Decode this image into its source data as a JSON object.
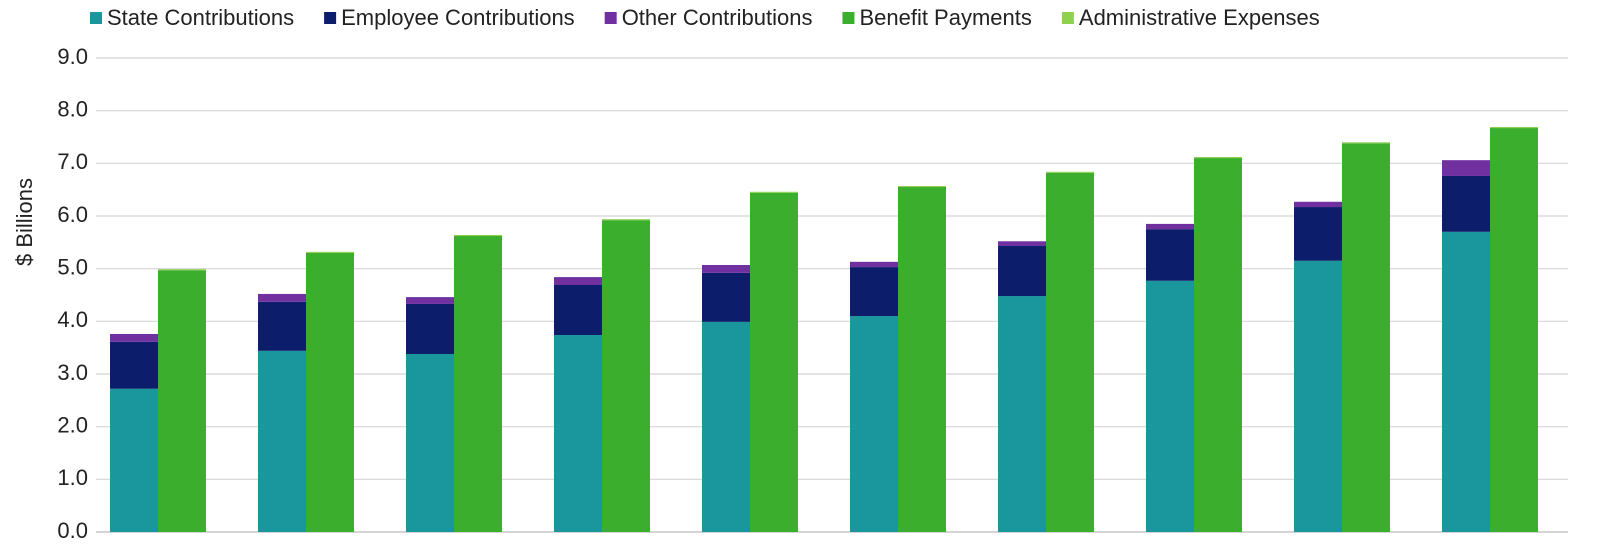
{
  "chart_data": {
    "type": "bar",
    "y_label": "$ Billions",
    "categories": [
      null,
      null,
      null,
      null,
      null,
      null,
      null,
      null,
      null,
      null
    ],
    "series": [
      {
        "name": "State Contributions",
        "color": "#1a979d",
        "stack": 1,
        "values": [
          2.72,
          3.44,
          3.38,
          3.74,
          3.99,
          4.1,
          4.48,
          4.77,
          5.15,
          5.7
        ]
      },
      {
        "name": "Employee Contributions",
        "color": "#0c1d6b",
        "stack": 1,
        "values": [
          0.89,
          0.93,
          0.95,
          0.95,
          0.93,
          0.93,
          0.95,
          0.98,
          1.02,
          1.06
        ]
      },
      {
        "name": "Other Contributions",
        "color": "#7030a0",
        "stack": 1,
        "values": [
          0.15,
          0.15,
          0.13,
          0.15,
          0.15,
          0.1,
          0.09,
          0.1,
          0.1,
          0.3
        ]
      },
      {
        "name": "Benefit Payments",
        "color": "#3cae2e",
        "stack": 2,
        "values": [
          4.97,
          5.3,
          5.62,
          5.92,
          6.44,
          6.55,
          6.82,
          7.1,
          7.38,
          7.67
        ]
      },
      {
        "name": "Administrative Expenses",
        "color": "#8fd14f",
        "stack": 2,
        "values": [
          0.02,
          0.02,
          0.02,
          0.02,
          0.02,
          0.02,
          0.02,
          0.02,
          0.02,
          0.02
        ]
      }
    ],
    "ylim": [
      0,
      9
    ],
    "yticks": [
      {
        "value": 0,
        "label": "0.0"
      },
      {
        "value": 1,
        "label": "1.0"
      },
      {
        "value": 2,
        "label": "2.0"
      },
      {
        "value": 3,
        "label": "3.0"
      },
      {
        "value": 4,
        "label": "4.0"
      },
      {
        "value": 5,
        "label": "5.0"
      },
      {
        "value": 6,
        "label": "6.0"
      },
      {
        "value": 7,
        "label": "7.0"
      },
      {
        "value": 8,
        "label": "8.0"
      },
      {
        "value": 9,
        "label": "9.0"
      }
    ],
    "grid": true,
    "legend": "top"
  }
}
